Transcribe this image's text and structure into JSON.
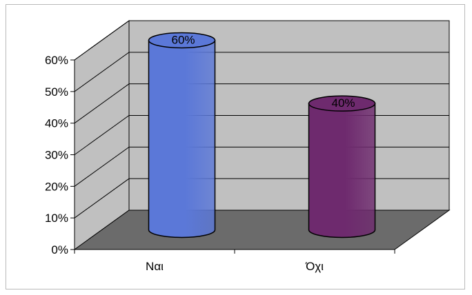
{
  "chart_data": {
    "type": "bar",
    "style": "3d-cylinder",
    "categories": [
      "Ναι",
      "Όχι"
    ],
    "values": [
      60,
      40
    ],
    "data_labels": [
      "60%",
      "40%"
    ],
    "series_colors": [
      "#5b78d8",
      "#6e2a6e"
    ],
    "yticks": [
      "0%",
      "10%",
      "20%",
      "30%",
      "40%",
      "50%",
      "60%"
    ],
    "ylim": [
      0,
      60
    ],
    "grid": true,
    "legend": "none"
  },
  "colors": {
    "wall": "#c0c0c0",
    "floor": "#6b6b6b",
    "gridline": "#000000"
  }
}
